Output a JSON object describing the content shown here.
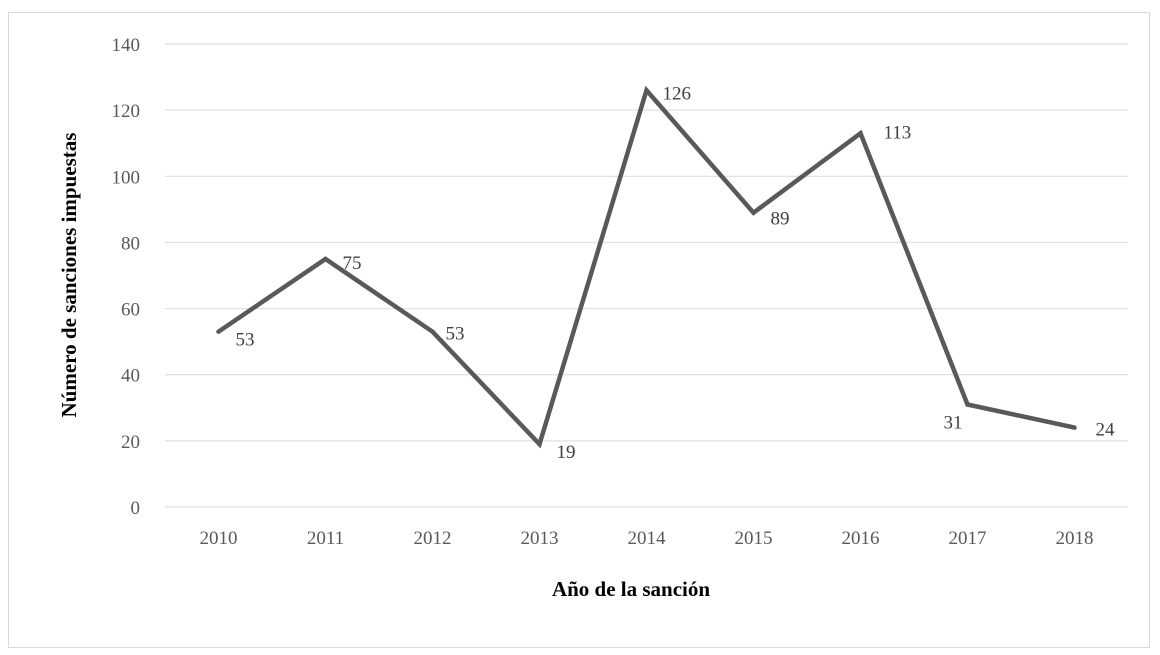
{
  "chart_data": {
    "type": "line",
    "title": "",
    "xlabel": "Año de la sanción",
    "ylabel": "Número de sanciones impuestas",
    "categories": [
      "2010",
      "2011",
      "2012",
      "2013",
      "2014",
      "2015",
      "2016",
      "2017",
      "2018"
    ],
    "series": [
      {
        "values": [
          53,
          75,
          53,
          19,
          126,
          89,
          113,
          31,
          24
        ]
      }
    ],
    "data_labels": [
      "53",
      "75",
      "53",
      "19",
      "126",
      "89",
      "113",
      "31",
      "24"
    ],
    "ylim": [
      0,
      140
    ],
    "y_ticks": [
      "0",
      "20",
      "40",
      "60",
      "80",
      "100",
      "120",
      "140"
    ],
    "grid": true,
    "legend": "none",
    "colors": {
      "line": "#595959",
      "grid": "#d9d9d9",
      "frame": "#d9d9d9"
    }
  }
}
